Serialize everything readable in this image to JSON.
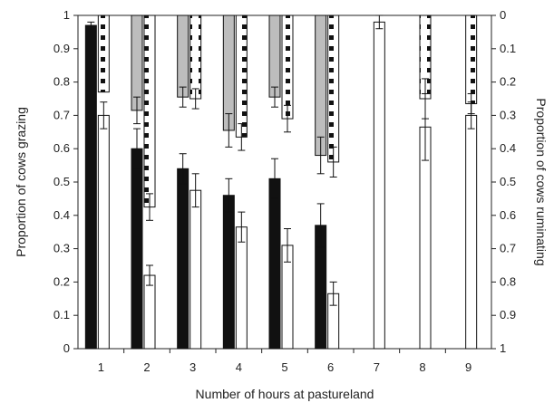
{
  "chart_data": {
    "type": "bar",
    "xlabel": "Number of hours at pastureland",
    "ylabel": "Proportion of cows grazing",
    "ylabel_right": "Proportion of cows ruminating",
    "categories": [
      "1",
      "2",
      "3",
      "4",
      "5",
      "6",
      "7",
      "8",
      "9"
    ],
    "ylim": [
      0,
      1
    ],
    "ylim_right_inverted": [
      0,
      1
    ],
    "y_ticks": [
      "0",
      "0.1",
      "0.2",
      "0.3",
      "0.4",
      "0.5",
      "0.6",
      "0.7",
      "0.8",
      "0.9",
      "1"
    ],
    "y_right_ticks": [
      "1",
      "0.9",
      "0.8",
      "0.7",
      "0.6",
      "0.5",
      "0.4",
      "0.3",
      "0.2",
      "0.1",
      "0"
    ],
    "series": [
      {
        "axis": "left",
        "style": "solid-black",
        "values": [
          0.97,
          0.6,
          0.54,
          0.46,
          0.51,
          0.37,
          null,
          null,
          null
        ],
        "errors": [
          0.01,
          0.06,
          0.045,
          0.05,
          0.06,
          0.065,
          null,
          null,
          null
        ]
      },
      {
        "axis": "left",
        "style": "white",
        "values": [
          0.7,
          0.22,
          0.475,
          0.365,
          0.31,
          0.165,
          0.98,
          0.665,
          0.7
        ],
        "errors": [
          0.04,
          0.03,
          0.05,
          0.045,
          0.05,
          0.035,
          0.02,
          0.1,
          0.04
        ]
      },
      {
        "axis": "right",
        "style": "grey",
        "values": [
          0.0,
          0.285,
          0.245,
          0.345,
          0.245,
          0.42,
          null,
          null,
          null
        ],
        "errors": [
          0.0,
          0.04,
          0.03,
          0.05,
          0.03,
          0.055,
          null,
          null,
          null
        ]
      },
      {
        "axis": "right",
        "style": "dotted-white",
        "values": [
          0.23,
          0.575,
          0.25,
          0.365,
          0.31,
          0.44,
          0.0,
          0.25,
          0.265
        ],
        "errors": [
          0.0,
          0.04,
          0.03,
          0.04,
          0.04,
          0.045,
          0.0,
          0.06,
          0.03
        ]
      }
    ],
    "grid": false,
    "legend": "none"
  }
}
